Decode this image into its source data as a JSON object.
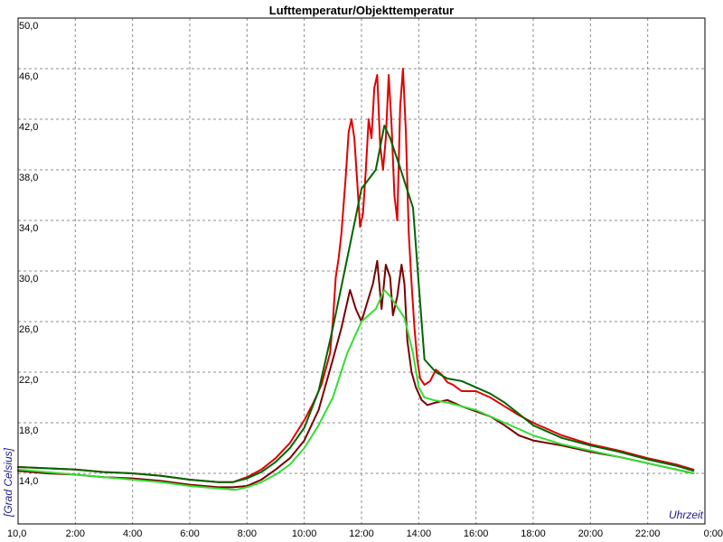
{
  "chart_data": {
    "type": "line",
    "title": "Lufttemperatur/Objekttemperatur",
    "xlabel": "Uhrzeit",
    "ylabel": "[Grad Celsius]",
    "xlim": [
      0,
      24
    ],
    "ylim": [
      10,
      50
    ],
    "x_ticks": [
      {
        "value": 0,
        "label": "10,0"
      },
      {
        "value": 2,
        "label": "2:00"
      },
      {
        "value": 4,
        "label": "4:00"
      },
      {
        "value": 6,
        "label": "6:00"
      },
      {
        "value": 8,
        "label": "8:00"
      },
      {
        "value": 10,
        "label": "10:00"
      },
      {
        "value": 12,
        "label": "12:00"
      },
      {
        "value": 14,
        "label": "14:00"
      },
      {
        "value": 16,
        "label": "16:00"
      },
      {
        "value": 18,
        "label": "18:00"
      },
      {
        "value": 20,
        "label": "20:00"
      },
      {
        "value": 22,
        "label": "22:00"
      },
      {
        "value": 24,
        "label": "0:00"
      }
    ],
    "y_ticks": [
      {
        "value": 14,
        "label": "14,0"
      },
      {
        "value": 18,
        "label": "18,0"
      },
      {
        "value": 22,
        "label": "22,0"
      },
      {
        "value": 26,
        "label": "26,0"
      },
      {
        "value": 30,
        "label": "30,0"
      },
      {
        "value": 34,
        "label": "34,0"
      },
      {
        "value": 38,
        "label": "38,0"
      },
      {
        "value": 42,
        "label": "42,0"
      },
      {
        "value": 46,
        "label": "46,0"
      },
      {
        "value": 50,
        "label": "50,0"
      }
    ],
    "grid": true,
    "series": [
      {
        "color": "#e00000",
        "x": [
          0,
          1,
          2,
          3,
          4,
          5,
          6,
          7,
          7.5,
          8,
          8.5,
          9,
          9.5,
          10,
          10.3,
          10.6,
          10.9,
          11.0,
          11.1,
          11.2,
          11.3,
          11.45,
          11.55,
          11.65,
          11.75,
          11.85,
          11.95,
          12.05,
          12.15,
          12.25,
          12.35,
          12.45,
          12.55,
          12.65,
          12.75,
          12.85,
          12.95,
          13.05,
          13.15,
          13.25,
          13.35,
          13.45,
          13.55,
          13.65,
          13.75,
          13.85,
          13.95,
          14.05,
          14.2,
          14.4,
          14.6,
          14.8,
          15.0,
          15.2,
          15.5,
          16.0,
          16.5,
          17.0,
          17.5,
          18,
          19,
          20,
          21,
          22,
          23,
          23.6
        ],
        "y": [
          14.5,
          14.4,
          14.3,
          14.1,
          14.0,
          13.8,
          13.5,
          13.3,
          13.3,
          13.7,
          14.3,
          15.2,
          16.4,
          18.2,
          19.5,
          21.0,
          23.5,
          26.0,
          29.5,
          31.0,
          33.0,
          37.5,
          41.0,
          42.0,
          40.5,
          37.0,
          33.5,
          34.5,
          38.0,
          42.0,
          40.5,
          44.5,
          45.5,
          40.0,
          38.0,
          40.5,
          45.5,
          41.5,
          36.0,
          34.0,
          43.0,
          46.0,
          41.0,
          33.0,
          29.0,
          25.5,
          23.0,
          21.5,
          21.0,
          21.3,
          22.2,
          21.8,
          21.2,
          21.0,
          20.5,
          20.5,
          20.0,
          19.3,
          18.6,
          18.0,
          17.0,
          16.3,
          15.8,
          15.2,
          14.7,
          14.3
        ]
      },
      {
        "color": "#006600",
        "x": [
          0,
          1,
          2,
          3,
          4,
          5,
          6,
          7,
          7.5,
          8,
          8.5,
          9,
          9.5,
          10,
          10.5,
          11,
          11.5,
          12,
          12.5,
          12.8,
          13,
          13.3,
          13.8,
          14.0,
          14.2,
          14.6,
          15.0,
          15.5,
          16,
          16.5,
          17,
          17.5,
          18,
          19,
          20,
          21,
          22,
          23,
          23.6
        ],
        "y": [
          14.5,
          14.4,
          14.3,
          14.1,
          14.0,
          13.8,
          13.5,
          13.3,
          13.3,
          13.6,
          14.1,
          14.9,
          16.0,
          17.6,
          20.5,
          25.5,
          31.0,
          36.5,
          38.0,
          41.5,
          40.5,
          38.5,
          35.0,
          29.0,
          23.0,
          22.0,
          21.5,
          21.3,
          20.8,
          20.3,
          19.6,
          18.7,
          17.8,
          16.8,
          16.2,
          15.7,
          15.1,
          14.6,
          14.2
        ]
      },
      {
        "color": "#7a0000",
        "x": [
          0,
          1,
          2,
          3,
          4,
          5,
          6,
          7,
          7.5,
          8,
          8.5,
          9,
          9.5,
          10,
          10.5,
          11.0,
          11.3,
          11.6,
          11.8,
          12.0,
          12.2,
          12.4,
          12.55,
          12.7,
          12.85,
          13.0,
          13.1,
          13.25,
          13.4,
          13.5,
          13.6,
          13.75,
          13.9,
          14.1,
          14.3,
          14.6,
          15.0,
          15.5,
          16.0,
          16.5,
          17,
          17.5,
          18,
          19,
          20,
          21,
          22,
          23,
          23.6
        ],
        "y": [
          14.2,
          14.0,
          13.9,
          13.7,
          13.6,
          13.4,
          13.1,
          12.9,
          12.9,
          13.0,
          13.5,
          14.3,
          15.2,
          16.6,
          19.0,
          23.0,
          25.5,
          28.5,
          27.0,
          26.0,
          27.5,
          29.0,
          30.8,
          27.0,
          30.5,
          29.5,
          26.5,
          28.0,
          30.5,
          29.0,
          24.5,
          22.0,
          20.8,
          19.8,
          19.4,
          19.6,
          19.8,
          19.3,
          18.9,
          18.5,
          17.8,
          17.0,
          16.6,
          16.2,
          15.7,
          15.3,
          14.8,
          14.3,
          14.0
        ]
      },
      {
        "color": "#33dd33",
        "x": [
          0,
          1,
          2,
          3,
          4,
          5,
          6,
          7,
          7.6,
          8,
          8.5,
          9,
          9.5,
          10,
          10.5,
          11,
          11.5,
          12,
          12.5,
          12.8,
          13,
          13.5,
          13.8,
          14.0,
          14.2,
          14.5,
          15,
          15.5,
          16,
          16.5,
          17,
          17.5,
          18,
          19,
          20,
          21,
          22,
          23,
          23.6
        ],
        "y": [
          14.3,
          14.1,
          13.9,
          13.7,
          13.5,
          13.3,
          13.0,
          12.8,
          12.7,
          12.9,
          13.3,
          13.9,
          14.7,
          16.0,
          17.8,
          20.0,
          23.5,
          26.0,
          27.0,
          28.5,
          28.0,
          26.3,
          23.5,
          20.8,
          20.0,
          19.8,
          19.6,
          19.3,
          19.0,
          18.5,
          18.0,
          17.5,
          17.0,
          16.3,
          15.8,
          15.3,
          14.8,
          14.3,
          14.0
        ]
      }
    ]
  }
}
